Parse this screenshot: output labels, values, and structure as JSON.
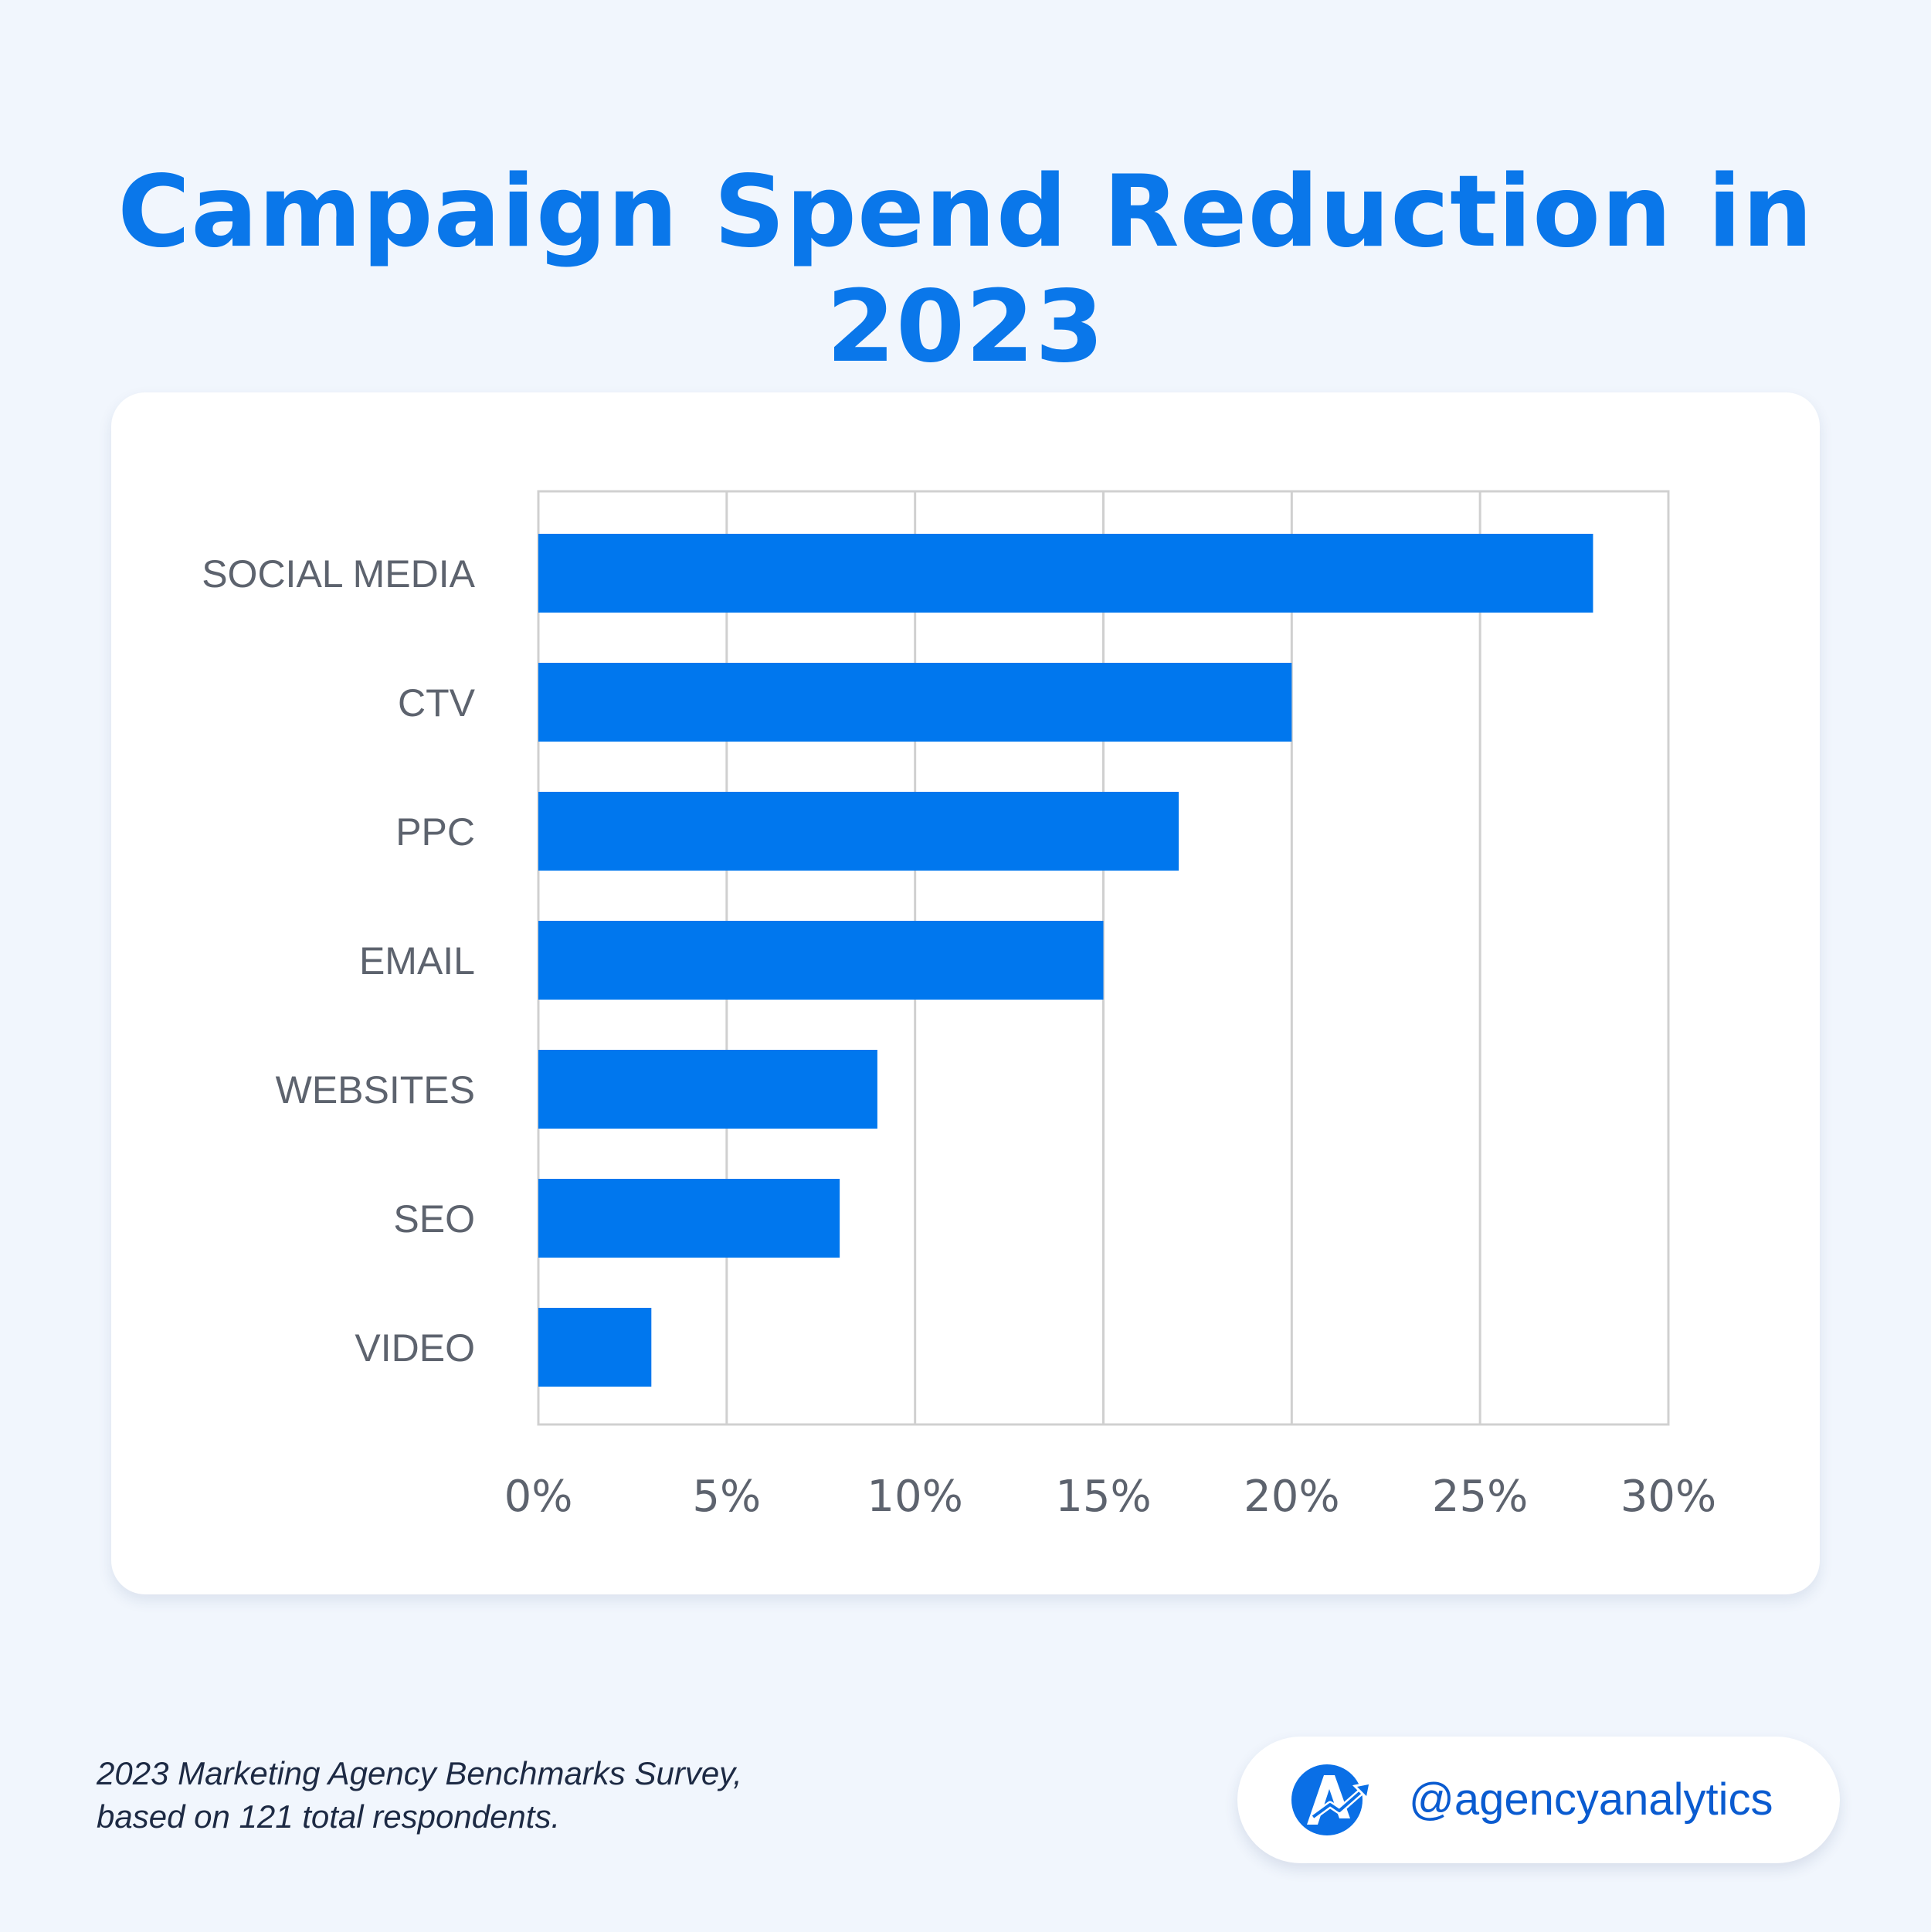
{
  "title": "Campaign Spend Reduction in 2023",
  "chart_data": {
    "type": "bar",
    "orientation": "horizontal",
    "categories": [
      "SOCIAL MEDIA",
      "CTV",
      "PPC",
      "EMAIL",
      "WEBSITES",
      "SEO",
      "VIDEO"
    ],
    "values": [
      28,
      20,
      17,
      15,
      9,
      8,
      3
    ],
    "x_ticks": [
      "0%",
      "5%",
      "10%",
      "15%",
      "20%",
      "25%",
      "30%"
    ],
    "xlim": [
      0,
      30
    ],
    "grid": true,
    "bar_color": "#0077ee"
  },
  "footer": {
    "source_line1": "2023 Marketing Agency Benchmarks Survey,",
    "source_line2": "based on 121 total respondents.",
    "handle": "@agencyanalytics",
    "logo_icon": "agencyanalytics-logo-icon"
  },
  "colors": {
    "title": "#0a77ea",
    "background": "#f1f6fd",
    "grid": "#d0d0d0",
    "label": "#5d636e"
  }
}
